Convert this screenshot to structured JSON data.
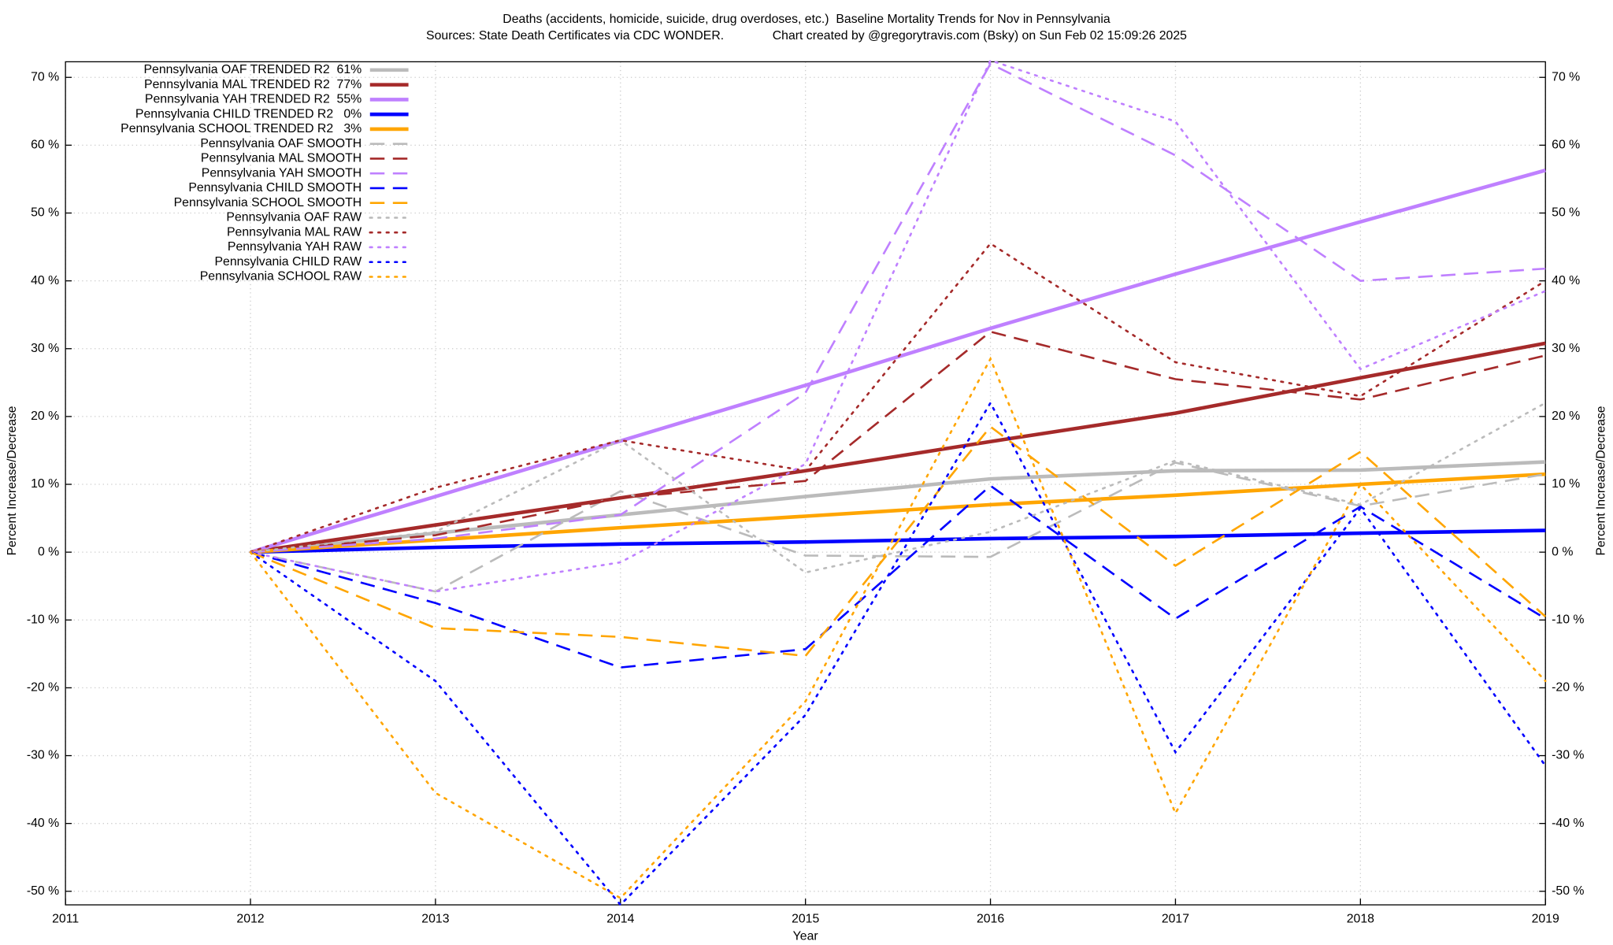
{
  "chart_data": {
    "type": "line",
    "title": "Deaths (accidents, homicide, suicide, drug overdoses, etc.)  Baseline Mortality Trends for Nov in Pennsylvania",
    "subtitle": "Sources: State Death Certificates via CDC WONDER.              Chart created by @gregorytravis.com (Bsky) on Sun Feb 02 15:09:26 2025",
    "xlabel": "Year",
    "ylabel": "Percent Increase/Decrease",
    "y2label": "Percent Increase/Decrease",
    "x": [
      2012,
      2013,
      2014,
      2015,
      2016,
      2017,
      2018,
      2019
    ],
    "xlim": [
      2011,
      2019
    ],
    "xticks": [
      2011,
      2012,
      2013,
      2014,
      2015,
      2016,
      2017,
      2018,
      2019
    ],
    "ylim": [
      -52,
      72.3
    ],
    "yticks": [
      {
        "value": -50,
        "label": "-50 %"
      },
      {
        "value": -40,
        "label": "-40 %"
      },
      {
        "value": -30,
        "label": "-30 %"
      },
      {
        "value": -20,
        "label": "-20 %"
      },
      {
        "value": -10,
        "label": "-10 %"
      },
      {
        "value": 0,
        "label": "0 %"
      },
      {
        "value": 10,
        "label": "10 %"
      },
      {
        "value": 20,
        "label": "20 %"
      },
      {
        "value": 30,
        "label": "30 %"
      },
      {
        "value": 40,
        "label": "40 %"
      },
      {
        "value": 50,
        "label": "50 %"
      },
      {
        "value": 60,
        "label": "60 %"
      },
      {
        "value": 70,
        "label": "70 %"
      }
    ],
    "grid": true,
    "legend": "top-left",
    "series": [
      {
        "name": "Pennsylvania OAF TRENDED R2  61%",
        "color": "#bbbbbb",
        "dash": "solid",
        "values": [
          0,
          2.8,
          5.5,
          8.2,
          10.8,
          12.0,
          12.1,
          13.3
        ]
      },
      {
        "name": "Pennsylvania MAL TRENDED R2  77%",
        "color": "#a52a2a",
        "dash": "solid",
        "values": [
          0,
          4,
          8,
          12,
          16.3,
          20.5,
          25.7,
          30.8
        ]
      },
      {
        "name": "Pennsylvania YAH TRENDED R2  55%",
        "color": "#bf80ff",
        "dash": "solid",
        "values": [
          0,
          8.2,
          16.4,
          24.6,
          33,
          41,
          48.7,
          56.3
        ]
      },
      {
        "name": "Pennsylvania CHILD TRENDED R2   0%",
        "color": "#0000ff",
        "dash": "solid",
        "values": [
          0,
          0.7,
          1.2,
          1.5,
          2,
          2.3,
          2.8,
          3.2
        ]
      },
      {
        "name": "Pennsylvania SCHOOL TRENDED R2   3%",
        "color": "#ffa500",
        "dash": "solid",
        "values": [
          0,
          1.8,
          3.6,
          5.3,
          7,
          8.4,
          10,
          11.5
        ]
      },
      {
        "name": "Pennsylvania OAF SMOOTH",
        "color": "#bbbbbb",
        "dash": "dash",
        "values": [
          0,
          -5.8,
          9,
          -0.5,
          -0.7,
          13.2,
          6.8,
          11.5
        ]
      },
      {
        "name": "Pennsylvania MAL SMOOTH",
        "color": "#a52a2a",
        "dash": "dash",
        "values": [
          0,
          2.5,
          8,
          10.5,
          32.5,
          25.5,
          22.5,
          29
        ]
      },
      {
        "name": "Pennsylvania YAH SMOOTH",
        "color": "#bf80ff",
        "dash": "dash",
        "values": [
          0,
          2,
          5.5,
          23.5,
          72,
          58.5,
          40,
          41.8
        ]
      },
      {
        "name": "Pennsylvania CHILD SMOOTH",
        "color": "#0000ff",
        "dash": "dash",
        "values": [
          0,
          -7.5,
          -17,
          -14.3,
          9.8,
          -9.8,
          6.7,
          -9.8
        ]
      },
      {
        "name": "Pennsylvania SCHOOL SMOOTH",
        "color": "#ffa500",
        "dash": "dash",
        "values": [
          0,
          -11.2,
          -12.5,
          -15.3,
          18.5,
          -2,
          14.8,
          -9.5
        ]
      },
      {
        "name": "Pennsylvania OAF RAW",
        "color": "#bbbbbb",
        "dash": "dot",
        "values": [
          0,
          3,
          16.5,
          -3,
          3,
          13.5,
          7,
          22
        ]
      },
      {
        "name": "Pennsylvania MAL RAW",
        "color": "#a52a2a",
        "dash": "dot",
        "values": [
          0,
          9.5,
          16.5,
          12,
          45.5,
          28,
          23,
          40
        ]
      },
      {
        "name": "Pennsylvania YAH RAW",
        "color": "#bf80ff",
        "dash": "dot",
        "values": [
          0,
          -5.8,
          -1.5,
          13,
          72.5,
          63.5,
          27,
          38.5
        ]
      },
      {
        "name": "Pennsylvania CHILD RAW",
        "color": "#0000ff",
        "dash": "dot",
        "values": [
          0,
          -19,
          -52,
          -24,
          22,
          -29.5,
          6.5,
          -31.5
        ]
      },
      {
        "name": "Pennsylvania SCHOOL RAW",
        "color": "#ffa500",
        "dash": "dot",
        "values": [
          0,
          -35.5,
          -51,
          -22,
          28.5,
          -38.5,
          10,
          -19
        ]
      }
    ]
  }
}
